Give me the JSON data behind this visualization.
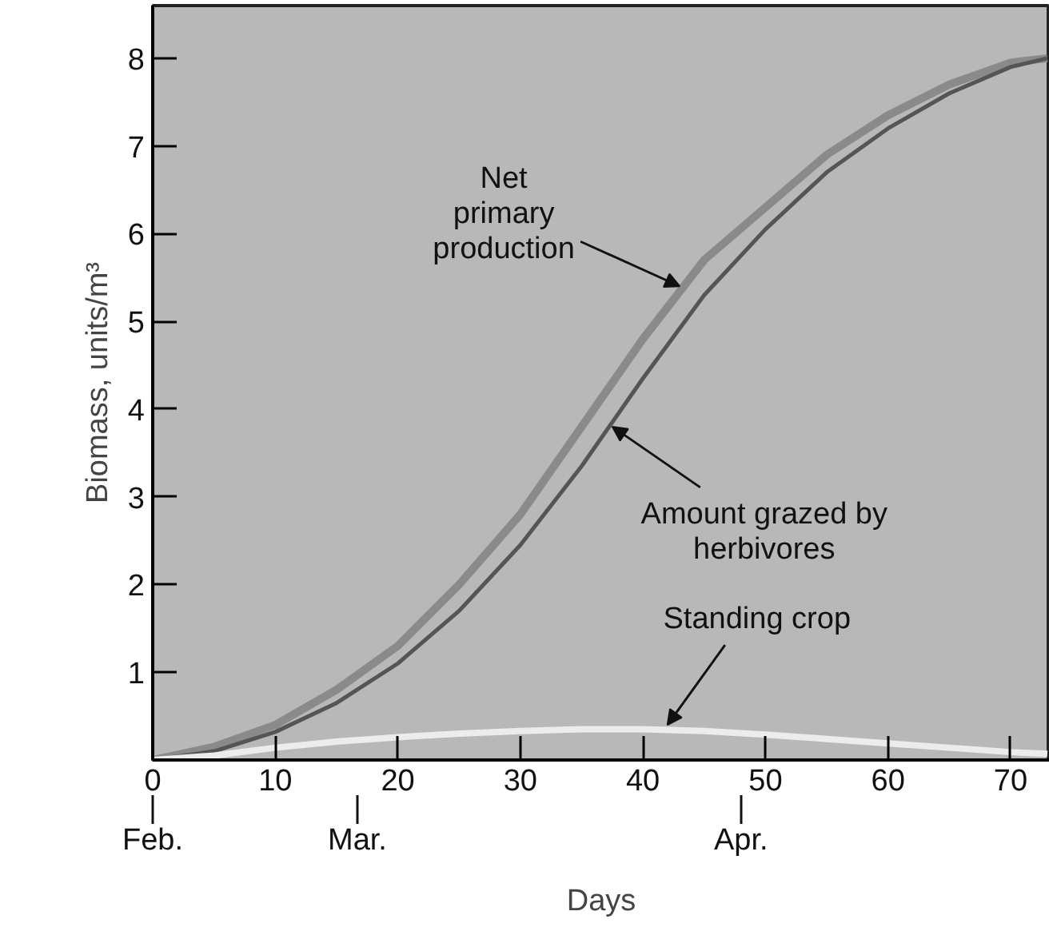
{
  "chart_data": {
    "type": "line",
    "xlabel": "Days",
    "ylabel": "Biomass, units/m³",
    "xlim": [
      0,
      73.2
    ],
    "ylim": [
      0,
      8.6
    ],
    "xticks": [
      0,
      10,
      20,
      30,
      40,
      50,
      60,
      70
    ],
    "yticks": [
      1,
      2,
      3,
      4,
      5,
      6,
      7,
      8
    ],
    "grid": false,
    "marker": "none",
    "line_style": "solid",
    "series": [
      {
        "color": "#8a8a8a",
        "x": [
          0,
          5,
          10,
          15,
          20,
          25,
          30,
          35,
          40,
          45,
          50,
          55,
          60,
          65,
          70,
          73
        ],
        "values": [
          0,
          0.15,
          0.4,
          0.8,
          1.3,
          2.0,
          2.8,
          3.8,
          4.8,
          5.7,
          6.3,
          6.9,
          7.35,
          7.7,
          7.95,
          8.0
        ]
      },
      {
        "color": "#555555",
        "x": [
          0,
          5,
          10,
          15,
          20,
          25,
          30,
          35,
          40,
          45,
          50,
          55,
          60,
          65,
          70,
          73
        ],
        "values": [
          0,
          0.1,
          0.32,
          0.65,
          1.1,
          1.7,
          2.45,
          3.35,
          4.35,
          5.3,
          6.05,
          6.7,
          7.2,
          7.6,
          7.9,
          8.0
        ]
      },
      {
        "color": "#ececec",
        "x": [
          0,
          5,
          10,
          15,
          20,
          25,
          30,
          35,
          40,
          45,
          50,
          55,
          60,
          65,
          70,
          73
        ],
        "values": [
          0,
          0.05,
          0.14,
          0.21,
          0.26,
          0.3,
          0.33,
          0.35,
          0.35,
          0.33,
          0.29,
          0.24,
          0.19,
          0.14,
          0.09,
          0.07
        ]
      }
    ],
    "annotations": [
      {
        "text": "Net\nprimary\nproduction",
        "x": 43,
        "y": 5.4
      },
      {
        "text": "Amount grazed by\nherbivores",
        "x": 37.5,
        "y": 3.8
      },
      {
        "text": "Standing crop",
        "x": 42,
        "y": 0.4
      }
    ],
    "ref_lines": [
      {
        "axis": "x",
        "value": 0,
        "label": "Feb."
      },
      {
        "axis": "x",
        "value": 16.7,
        "label": "Mar."
      },
      {
        "axis": "x",
        "value": 48,
        "label": "Apr."
      }
    ]
  }
}
